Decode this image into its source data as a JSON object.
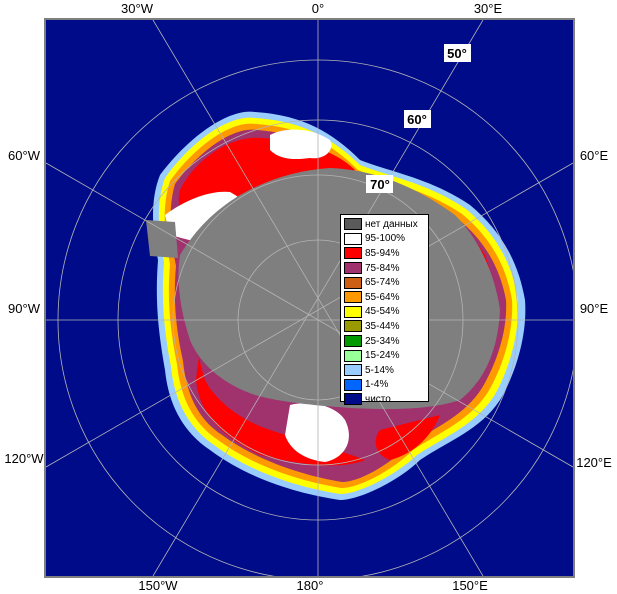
{
  "map": {
    "colors": {
      "ocean": "#000b8a",
      "land_no_data": "#7f7f7f",
      "frame": "#7f7f7f",
      "graticule": "#b4b4b4"
    },
    "longitude_labels": {
      "top": [
        "30°W",
        "0°",
        "30°E"
      ],
      "left": [
        "60°W",
        "90°W",
        "120°W"
      ],
      "right": [
        "60°E",
        "90°E",
        "120°E"
      ],
      "bottom": [
        "150°W",
        "180°",
        "150°E"
      ]
    },
    "latitude_labels": [
      "50°",
      "60°",
      "70°"
    ]
  },
  "legend": {
    "items": [
      {
        "label": "нет данных",
        "color": "#5a5a5a"
      },
      {
        "label": "95-100%",
        "color": "#ffffff"
      },
      {
        "label": "85-94%",
        "color": "#ff0000"
      },
      {
        "label": "75-84%",
        "color": "#a0326e"
      },
      {
        "label": "65-74%",
        "color": "#cc5f14"
      },
      {
        "label": "55-64%",
        "color": "#ff9900"
      },
      {
        "label": "45-54%",
        "color": "#ffff00"
      },
      {
        "label": "35-44%",
        "color": "#999900"
      },
      {
        "label": "25-34%",
        "color": "#009900"
      },
      {
        "label": "15-24%",
        "color": "#99ff99"
      },
      {
        "label": "5-14%",
        "color": "#99ccff"
      },
      {
        "label": "1-4%",
        "color": "#0066ff"
      },
      {
        "label": "чисто",
        "color": "#000b8a"
      }
    ]
  }
}
